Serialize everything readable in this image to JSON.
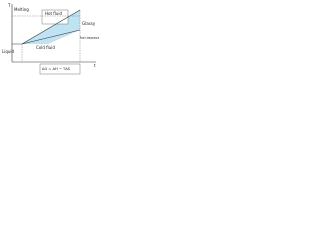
{
  "axes": {
    "y_label": "T",
    "x_label": "t"
  },
  "labels": {
    "melting": "Melting",
    "hot": "Hot fluid",
    "glassy": "Glassy",
    "cold": "Cold fluid",
    "rise": "Rise in temperature",
    "liquid": "Liquid",
    "formula": "ΔG = ΔH − TΔS"
  }
}
